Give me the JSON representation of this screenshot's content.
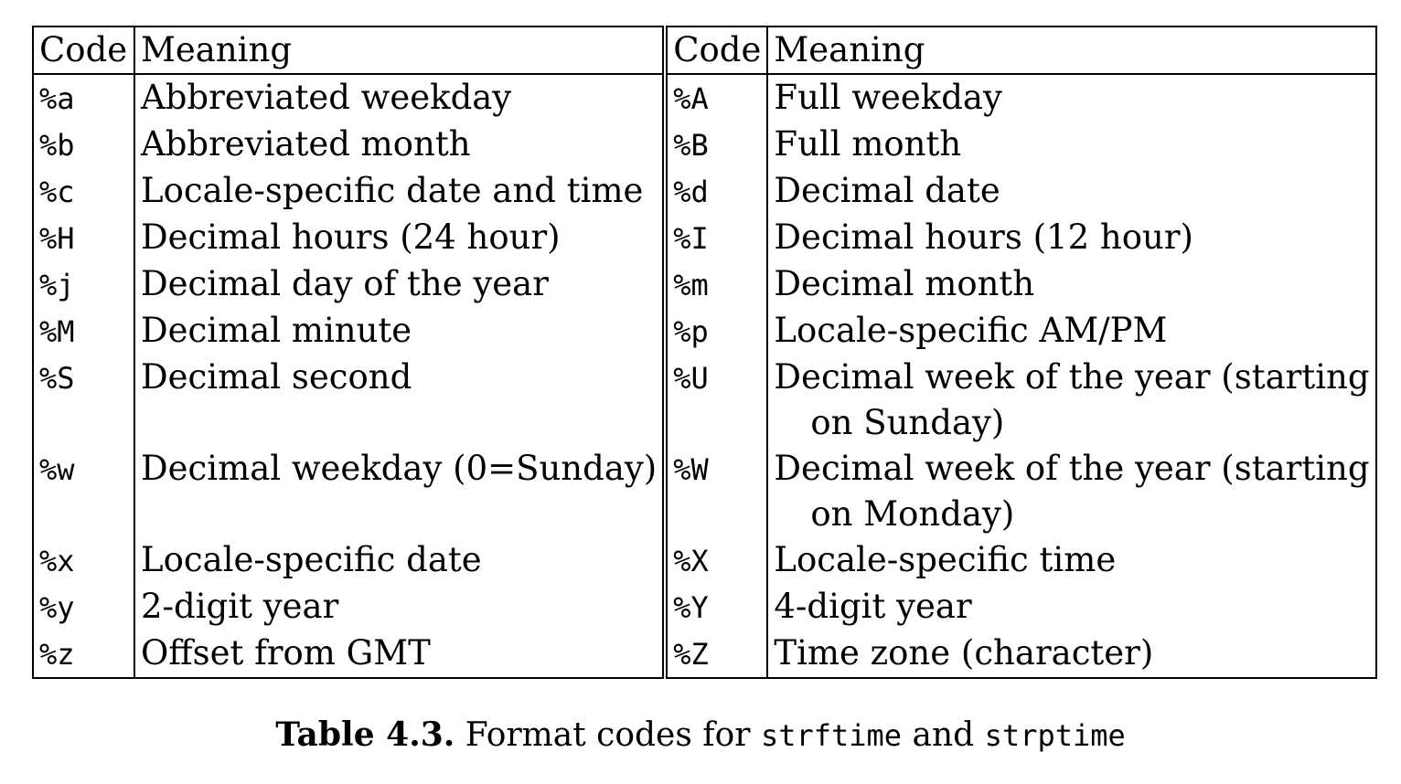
{
  "table": {
    "headers": {
      "code_left": "Code",
      "meaning_left": "Meaning",
      "code_right": "Code",
      "meaning_right": "Meaning"
    },
    "rows": [
      {
        "code_left": "%a",
        "meaning_left": "Abbreviated weekday",
        "meaning_left_cont": "",
        "code_right": "%A",
        "meaning_right": "Full weekday",
        "meaning_right_cont": ""
      },
      {
        "code_left": "%b",
        "meaning_left": "Abbreviated month",
        "meaning_left_cont": "",
        "code_right": "%B",
        "meaning_right": "Full month",
        "meaning_right_cont": ""
      },
      {
        "code_left": "%c",
        "meaning_left": "Locale-specific date and time",
        "meaning_left_cont": "",
        "code_right": "%d",
        "meaning_right": "Decimal date",
        "meaning_right_cont": ""
      },
      {
        "code_left": "%H",
        "meaning_left": "Decimal hours (24 hour)",
        "meaning_left_cont": "",
        "code_right": "%I",
        "meaning_right": "Decimal hours (12 hour)",
        "meaning_right_cont": ""
      },
      {
        "code_left": "%j",
        "meaning_left": "Decimal day of the year",
        "meaning_left_cont": "",
        "code_right": "%m",
        "meaning_right": "Decimal month",
        "meaning_right_cont": ""
      },
      {
        "code_left": "%M",
        "meaning_left": "Decimal minute",
        "meaning_left_cont": "",
        "code_right": "%p",
        "meaning_right": "Locale-specific AM/PM",
        "meaning_right_cont": ""
      },
      {
        "code_left": "%S",
        "meaning_left": "Decimal second",
        "meaning_left_cont": "",
        "code_right": "%U",
        "meaning_right": "Decimal week of the year (starting",
        "meaning_right_cont": "on Sunday)"
      },
      {
        "code_left": "%w",
        "meaning_left": "Decimal weekday (0=Sunday)",
        "meaning_left_cont": "",
        "code_right": "%W",
        "meaning_right": "Decimal week of the year (starting",
        "meaning_right_cont": "on Monday)"
      },
      {
        "code_left": "%x",
        "meaning_left": "Locale-specific date",
        "meaning_left_cont": "",
        "code_right": "%X",
        "meaning_right": "Locale-specific time",
        "meaning_right_cont": ""
      },
      {
        "code_left": "%y",
        "meaning_left": "2-digit year",
        "meaning_left_cont": "",
        "code_right": "%Y",
        "meaning_right": "4-digit year",
        "meaning_right_cont": ""
      },
      {
        "code_left": "%z",
        "meaning_left": "Offset from GMT",
        "meaning_left_cont": "",
        "code_right": "%Z",
        "meaning_right": "Time zone (character)",
        "meaning_right_cont": ""
      }
    ]
  },
  "caption": {
    "label": "Table 4.3.",
    "text_before": "Format codes for",
    "func1": "strftime",
    "conj": "and",
    "func2": "strptime"
  }
}
